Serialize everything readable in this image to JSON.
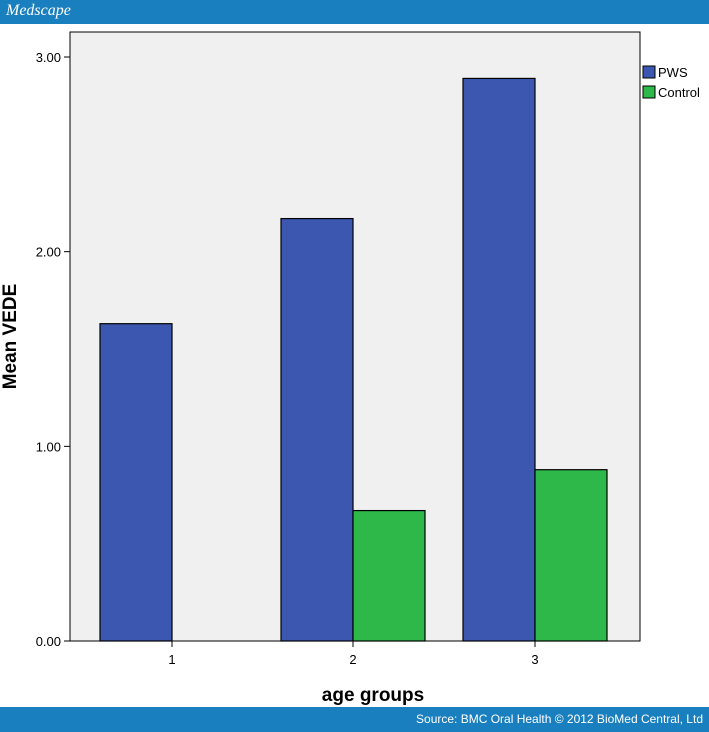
{
  "header": {
    "brand": "Medscape"
  },
  "footer": {
    "source": "Source: BMC Oral Health © 2012 BioMed Central, Ltd"
  },
  "colors": {
    "bar_blue": "#3b57b0",
    "bar_green": "#2fb84a",
    "plot_bg": "#f0f0f0",
    "banner": "#1a7fbf"
  },
  "chart_data": {
    "type": "bar",
    "title": "",
    "xlabel": "age groups",
    "ylabel": "Mean VEDE",
    "categories": [
      "1",
      "2",
      "3"
    ],
    "series": [
      {
        "name": "PWS",
        "values": [
          1.63,
          2.17,
          2.89
        ]
      },
      {
        "name": "Control",
        "values": [
          null,
          0.67,
          0.88
        ]
      }
    ],
    "ylim": [
      0,
      3.0
    ],
    "yticks": [
      0.0,
      1.0,
      2.0,
      3.0
    ],
    "ytick_labels": [
      "0.00",
      "1.00",
      "2.00",
      "3.00"
    ],
    "legend_position": "top-right",
    "grid": false
  }
}
